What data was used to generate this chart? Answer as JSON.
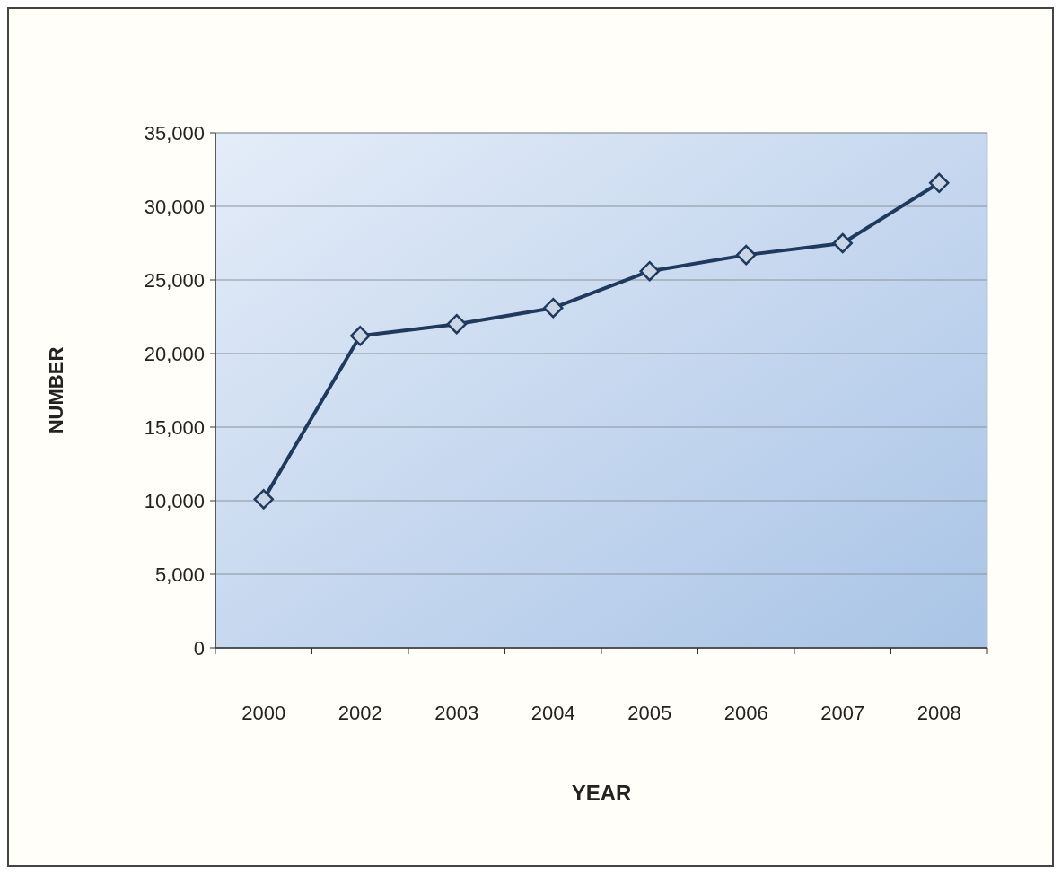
{
  "chart_data": {
    "type": "line",
    "xlabel": "YEAR",
    "ylabel": "NUMBER",
    "categories": [
      "2000",
      "2002",
      "2003",
      "2004",
      "2005",
      "2006",
      "2007",
      "2008"
    ],
    "series": [
      {
        "color": "#1f3a5c",
        "values": [
          10100,
          21200,
          22000,
          23100,
          25600,
          26700,
          27500,
          31600
        ]
      }
    ],
    "ylim": [
      0,
      35000
    ],
    "yticks": [
      {
        "value": 0,
        "label": "0"
      },
      {
        "value": 5000,
        "label": "5,000"
      },
      {
        "value": 10000,
        "label": "10,000"
      },
      {
        "value": 15000,
        "label": "15,000"
      },
      {
        "value": 20000,
        "label": "20,000"
      },
      {
        "value": 25000,
        "label": "25,000"
      },
      {
        "value": 30000,
        "label": "30,000"
      },
      {
        "value": 35000,
        "label": "35,000"
      }
    ],
    "grid": "y",
    "marker": "diamond"
  }
}
